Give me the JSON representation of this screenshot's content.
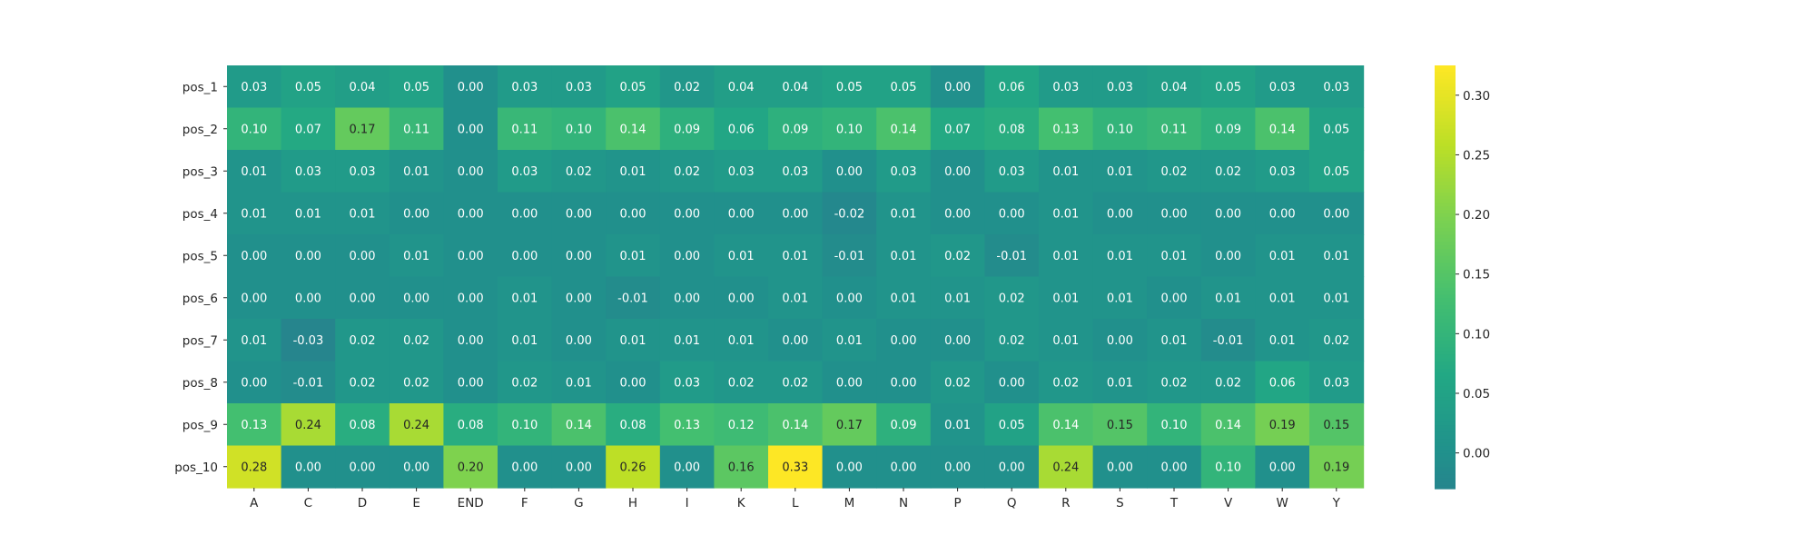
{
  "chart_data": {
    "type": "heatmap",
    "title": "",
    "xlabel": "",
    "ylabel": "",
    "x_categories": [
      "A",
      "C",
      "D",
      "E",
      "END",
      "F",
      "G",
      "H",
      "I",
      "K",
      "L",
      "M",
      "N",
      "P",
      "Q",
      "R",
      "S",
      "T",
      "V",
      "W",
      "Y"
    ],
    "y_categories": [
      "pos_1",
      "pos_2",
      "pos_3",
      "pos_4",
      "pos_5",
      "pos_6",
      "pos_7",
      "pos_8",
      "pos_9",
      "pos_10"
    ],
    "values": [
      [
        0.03,
        0.05,
        0.04,
        0.05,
        0.0,
        0.03,
        0.03,
        0.05,
        0.02,
        0.04,
        0.04,
        0.05,
        0.05,
        0.0,
        0.06,
        0.03,
        0.03,
        0.04,
        0.05,
        0.03,
        0.03
      ],
      [
        0.1,
        0.07,
        0.17,
        0.11,
        0.0,
        0.11,
        0.1,
        0.14,
        0.09,
        0.06,
        0.09,
        0.1,
        0.14,
        0.07,
        0.08,
        0.13,
        0.1,
        0.11,
        0.09,
        0.14,
        0.05
      ],
      [
        0.01,
        0.03,
        0.03,
        0.01,
        0.0,
        0.03,
        0.02,
        0.01,
        0.02,
        0.03,
        0.03,
        0.0,
        0.03,
        0.0,
        0.03,
        0.01,
        0.01,
        0.02,
        0.02,
        0.03,
        0.05
      ],
      [
        0.01,
        0.01,
        0.01,
        0.0,
        0.0,
        0.0,
        0.0,
        0.0,
        -0.0,
        0.0,
        -0.0,
        -0.02,
        0.01,
        -0.0,
        0.0,
        0.01,
        0.0,
        -0.0,
        0.0,
        0.0,
        -0.0
      ],
      [
        0.0,
        0.0,
        0.0,
        0.01,
        0.0,
        -0.0,
        0.0,
        0.01,
        -0.0,
        0.01,
        0.01,
        -0.01,
        0.01,
        0.02,
        -0.01,
        0.01,
        0.01,
        0.01,
        0.0,
        0.01,
        0.01
      ],
      [
        0.0,
        -0.0,
        0.0,
        0.0,
        0.0,
        0.01,
        0.0,
        -0.01,
        0.0,
        0.0,
        0.01,
        0.0,
        0.01,
        0.01,
        0.02,
        0.01,
        0.01,
        0.0,
        0.01,
        0.01,
        0.01
      ],
      [
        0.01,
        -0.03,
        0.02,
        0.02,
        0.0,
        0.01,
        0.0,
        0.01,
        0.01,
        0.01,
        0.0,
        0.01,
        0.0,
        0.0,
        0.02,
        0.01,
        0.0,
        0.01,
        -0.01,
        0.01,
        0.02
      ],
      [
        -0.0,
        -0.01,
        0.02,
        0.02,
        0.0,
        0.02,
        0.01,
        -0.0,
        0.03,
        0.02,
        0.02,
        -0.0,
        0.0,
        0.02,
        0.0,
        0.02,
        0.01,
        0.02,
        0.02,
        0.06,
        0.03
      ],
      [
        0.13,
        0.24,
        0.08,
        0.24,
        0.08,
        0.1,
        0.14,
        0.08,
        0.13,
        0.12,
        0.14,
        0.17,
        0.09,
        0.01,
        0.05,
        0.14,
        0.15,
        0.1,
        0.14,
        0.19,
        0.15
      ],
      [
        0.28,
        0.0,
        0.0,
        0.0,
        0.2,
        0.0,
        0.0,
        0.26,
        0.0,
        0.16,
        0.33,
        0.0,
        0.0,
        0.0,
        0.0,
        0.24,
        0.0,
        0.0,
        0.1,
        0.0,
        0.19
      ]
    ],
    "value_format": "2 decimals",
    "colormap": "viridis (upper portion)",
    "vmin": -0.03,
    "vmax": 0.325,
    "colorbar": {
      "ticks": [
        0.0,
        0.05,
        0.1,
        0.15,
        0.2,
        0.25,
        0.3
      ],
      "tick_labels": [
        "0.00",
        "0.05",
        "0.10",
        "0.15",
        "0.20",
        "0.25",
        "0.30"
      ],
      "placement": "right"
    },
    "grid": false,
    "legend": "none"
  }
}
